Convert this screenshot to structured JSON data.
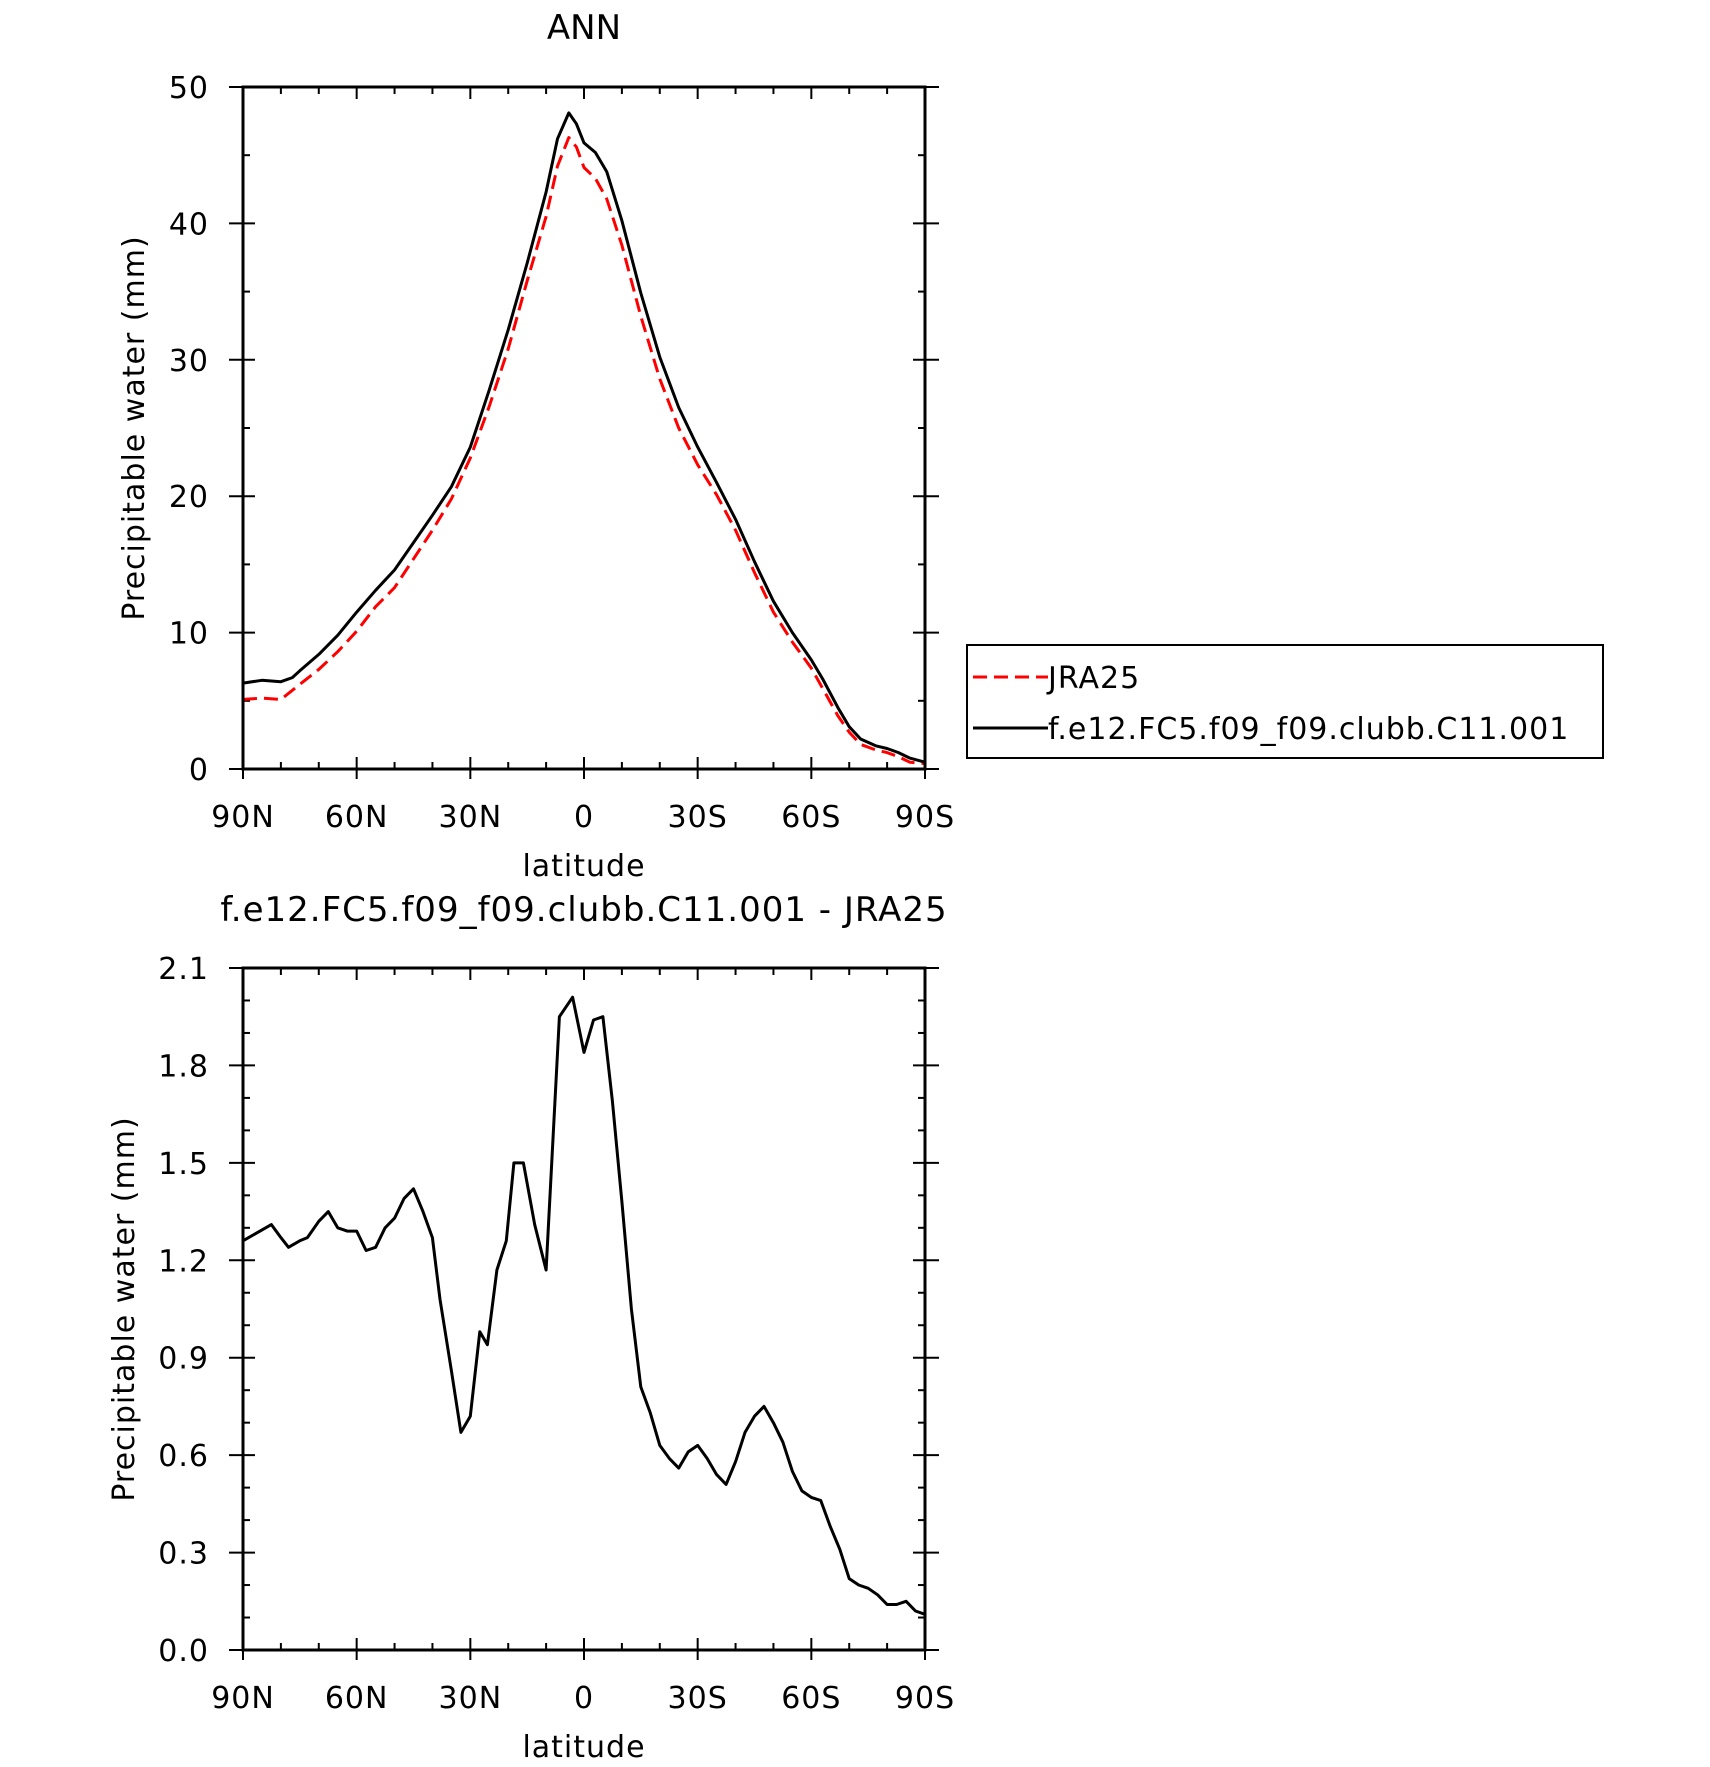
{
  "chart_data": [
    {
      "type": "line",
      "title": "ANN",
      "xlabel": "latitude",
      "ylabel": "Precipitable water (mm)",
      "xlim": [
        90,
        -90
      ],
      "ylim": [
        0,
        50
      ],
      "x_ticks": [
        90,
        60,
        30,
        0,
        -30,
        -60,
        -90
      ],
      "x_tick_labels": [
        "90N",
        "60N",
        "30N",
        "0",
        "30S",
        "60S",
        "90S"
      ],
      "y_ticks": [
        0,
        10,
        20,
        30,
        40,
        50
      ],
      "y_tick_labels": [
        "0",
        "10",
        "20",
        "30",
        "40",
        "50"
      ],
      "legend_position": "right",
      "series": [
        {
          "name": "JRA25",
          "color": "#ff0000",
          "style": "dashed",
          "points": [
            [
              90,
              5.1
            ],
            [
              85,
              5.2
            ],
            [
              80,
              5.1
            ],
            [
              75,
              6.2
            ],
            [
              70,
              7.3
            ],
            [
              65,
              8.6
            ],
            [
              60,
              10.1
            ],
            [
              55,
              11.9
            ],
            [
              50,
              13.3
            ],
            [
              45,
              15.4
            ],
            [
              40,
              17.5
            ],
            [
              35,
              19.8
            ],
            [
              30,
              22.8
            ],
            [
              25,
              26.6
            ],
            [
              20,
              30.8
            ],
            [
              15,
              35.8
            ],
            [
              10,
              40.5
            ],
            [
              7,
              44.2
            ],
            [
              4,
              46.3
            ],
            [
              2,
              45.6
            ],
            [
              0,
              44.1
            ],
            [
              -3,
              43.3
            ],
            [
              -6,
              41.8
            ],
            [
              -10,
              38.4
            ],
            [
              -15,
              33.2
            ],
            [
              -20,
              28.6
            ],
            [
              -25,
              25.0
            ],
            [
              -30,
              22.3
            ],
            [
              -35,
              20.1
            ],
            [
              -40,
              17.5
            ],
            [
              -45,
              14.4
            ],
            [
              -50,
              11.5
            ],
            [
              -55,
              9.3
            ],
            [
              -60,
              7.4
            ],
            [
              -63,
              5.9
            ],
            [
              -67,
              3.9
            ],
            [
              -70,
              2.7
            ],
            [
              -73,
              1.8
            ],
            [
              -77,
              1.4
            ],
            [
              -80,
              1.2
            ],
            [
              -83,
              0.9
            ],
            [
              -86,
              0.5
            ],
            [
              -90,
              0.4
            ]
          ]
        },
        {
          "name": "f.e12.FC5.f09_f09.clubb.C11.001",
          "color": "#000000",
          "style": "solid",
          "points": [
            [
              90,
              6.3
            ],
            [
              85,
              6.5
            ],
            [
              80,
              6.4
            ],
            [
              77,
              6.7
            ],
            [
              75,
              7.2
            ],
            [
              70,
              8.4
            ],
            [
              65,
              9.8
            ],
            [
              60,
              11.5
            ],
            [
              55,
              13.1
            ],
            [
              50,
              14.6
            ],
            [
              45,
              16.6
            ],
            [
              40,
              18.6
            ],
            [
              35,
              20.7
            ],
            [
              30,
              23.6
            ],
            [
              25,
              27.8
            ],
            [
              20,
              32.2
            ],
            [
              15,
              37.1
            ],
            [
              10,
              42.3
            ],
            [
              7,
              46.2
            ],
            [
              4,
              48.1
            ],
            [
              2,
              47.3
            ],
            [
              0,
              45.9
            ],
            [
              -3,
              45.2
            ],
            [
              -6,
              43.8
            ],
            [
              -10,
              40.2
            ],
            [
              -15,
              34.9
            ],
            [
              -20,
              30.2
            ],
            [
              -25,
              26.5
            ],
            [
              -30,
              23.6
            ],
            [
              -35,
              21.0
            ],
            [
              -40,
              18.3
            ],
            [
              -45,
              15.2
            ],
            [
              -50,
              12.3
            ],
            [
              -55,
              10.0
            ],
            [
              -60,
              8.0
            ],
            [
              -63,
              6.6
            ],
            [
              -67,
              4.5
            ],
            [
              -70,
              3.1
            ],
            [
              -73,
              2.2
            ],
            [
              -77,
              1.7
            ],
            [
              -80,
              1.5
            ],
            [
              -83,
              1.2
            ],
            [
              -86,
              0.8
            ],
            [
              -90,
              0.5
            ]
          ]
        }
      ]
    },
    {
      "type": "line",
      "title": "f.e12.FC5.f09_f09.clubb.C11.001 - JRA25",
      "xlabel": "latitude",
      "ylabel": "Precipitable water (mm)",
      "xlim": [
        90,
        -90
      ],
      "ylim": [
        0.0,
        2.1
      ],
      "x_ticks": [
        90,
        60,
        30,
        0,
        -30,
        -60,
        -90
      ],
      "x_tick_labels": [
        "90N",
        "60N",
        "30N",
        "0",
        "30S",
        "60S",
        "90S"
      ],
      "y_ticks": [
        0.0,
        0.3,
        0.6,
        0.9,
        1.2,
        1.5,
        1.8,
        2.1
      ],
      "y_tick_labels": [
        "0.0",
        "0.3",
        "0.6",
        "0.9",
        "1.2",
        "1.5",
        "1.8",
        "2.1"
      ],
      "series": [
        {
          "color": "#000000",
          "style": "solid",
          "points": [
            [
              90,
              1.26
            ],
            [
              87,
              1.28
            ],
            [
              84,
              1.3
            ],
            [
              82.5,
              1.31
            ],
            [
              80,
              1.27
            ],
            [
              78,
              1.24
            ],
            [
              75,
              1.26
            ],
            [
              73,
              1.27
            ],
            [
              70,
              1.32
            ],
            [
              67.5,
              1.35
            ],
            [
              65,
              1.3
            ],
            [
              62.5,
              1.29
            ],
            [
              60,
              1.29
            ],
            [
              57.5,
              1.23
            ],
            [
              55,
              1.24
            ],
            [
              52.5,
              1.3
            ],
            [
              50,
              1.33
            ],
            [
              47.5,
              1.39
            ],
            [
              45,
              1.42
            ],
            [
              42.5,
              1.35
            ],
            [
              40,
              1.27
            ],
            [
              38,
              1.08
            ],
            [
              35,
              0.86
            ],
            [
              32.5,
              0.67
            ],
            [
              30,
              0.72
            ],
            [
              27.5,
              0.98
            ],
            [
              25.5,
              0.94
            ],
            [
              23,
              1.17
            ],
            [
              20.5,
              1.26
            ],
            [
              18.5,
              1.5
            ],
            [
              16,
              1.5
            ],
            [
              13,
              1.31
            ],
            [
              10,
              1.17
            ],
            [
              6.5,
              1.95
            ],
            [
              3,
              2.01
            ],
            [
              0,
              1.84
            ],
            [
              -2.5,
              1.94
            ],
            [
              -5,
              1.95
            ],
            [
              -7.5,
              1.69
            ],
            [
              -10,
              1.38
            ],
            [
              -12.5,
              1.05
            ],
            [
              -15,
              0.81
            ],
            [
              -17.5,
              0.73
            ],
            [
              -20,
              0.63
            ],
            [
              -22.5,
              0.59
            ],
            [
              -25,
              0.56
            ],
            [
              -27.5,
              0.61
            ],
            [
              -30,
              0.63
            ],
            [
              -32.5,
              0.59
            ],
            [
              -35,
              0.54
            ],
            [
              -37.5,
              0.51
            ],
            [
              -40,
              0.58
            ],
            [
              -42.5,
              0.67
            ],
            [
              -45,
              0.72
            ],
            [
              -47.5,
              0.75
            ],
            [
              -50,
              0.7
            ],
            [
              -52.5,
              0.64
            ],
            [
              -55,
              0.55
            ],
            [
              -57.5,
              0.49
            ],
            [
              -60,
              0.47
            ],
            [
              -62.5,
              0.46
            ],
            [
              -65,
              0.38
            ],
            [
              -67.5,
              0.31
            ],
            [
              -70,
              0.22
            ],
            [
              -72.5,
              0.2
            ],
            [
              -75,
              0.19
            ],
            [
              -77.5,
              0.17
            ],
            [
              -80,
              0.14
            ],
            [
              -82.5,
              0.14
            ],
            [
              -85,
              0.15
            ],
            [
              -87.5,
              0.12
            ],
            [
              -90,
              0.11
            ]
          ]
        }
      ]
    }
  ]
}
